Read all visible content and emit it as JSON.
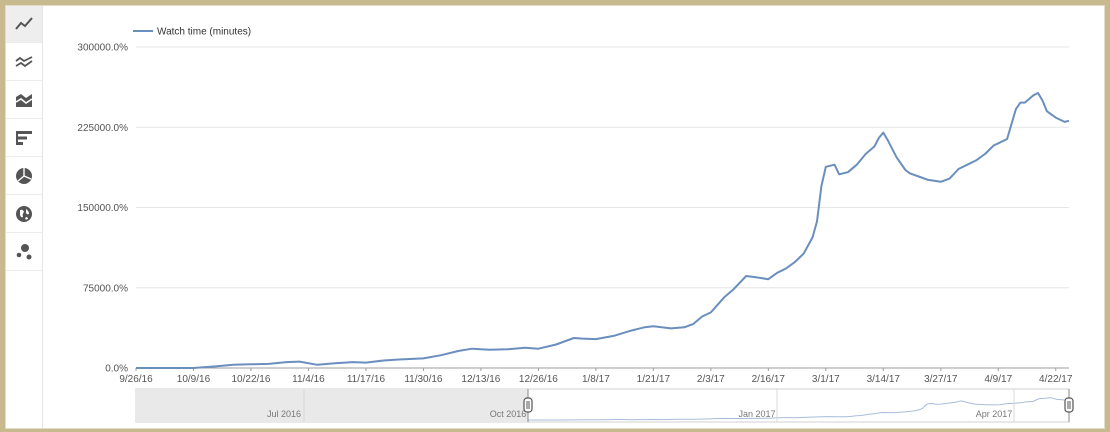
{
  "toolbar": {
    "icons": [
      "line-chart-icon",
      "multi-line-chart-icon",
      "stacked-area-chart-icon",
      "bar-chart-icon",
      "pie-chart-icon",
      "globe-map-icon",
      "bubble-chart-icon"
    ],
    "active": 0
  },
  "colors": {
    "line": "#6a8fbf",
    "grid": "#e6e6e6",
    "axis": "#9e9e9e",
    "nav_bg": "#e9e9e9",
    "frame": "#c9b98e"
  },
  "chart_data": {
    "type": "line",
    "legend": {
      "label": "Watch time (minutes)",
      "position": "top-left"
    },
    "title": "",
    "xlabel": "",
    "ylabel": "",
    "grid": true,
    "y_ticks": [
      "0.0%",
      "75000.0%",
      "150000.0%",
      "225000.0%",
      "300000.0%"
    ],
    "ylim": [
      0,
      300000
    ],
    "x_ticks": [
      "9/26/16",
      "10/9/16",
      "10/22/16",
      "11/4/16",
      "11/17/16",
      "11/30/16",
      "12/13/16",
      "12/26/16",
      "1/8/17",
      "1/21/17",
      "2/3/17",
      "2/16/17",
      "3/1/17",
      "3/14/17",
      "3/27/17",
      "4/9/17",
      "4/22/17"
    ],
    "xlim": [
      "9/26/16",
      "4/25/17"
    ],
    "series": [
      {
        "name": "Watch time (minutes)",
        "x": [
          "9/26/16",
          "10/9/16",
          "10/14/16",
          "10/18/16",
          "10/22/16",
          "10/26/16",
          "10/30/16",
          "11/2/16",
          "11/6/16",
          "11/10/16",
          "11/14/16",
          "11/17/16",
          "11/21/16",
          "11/25/16",
          "11/30/16",
          "12/4/16",
          "12/8/16",
          "12/11/16",
          "12/15/16",
          "12/19/16",
          "12/23/16",
          "12/26/16",
          "12/30/16",
          "1/3/17",
          "1/5/17",
          "1/8/17",
          "1/12/17",
          "1/16/17",
          "1/19/17",
          "1/21/17",
          "1/25/17",
          "1/28/17",
          "1/30/17",
          "2/1/17",
          "2/3/17",
          "2/6/17",
          "2/8/17",
          "2/11/17",
          "2/13/17",
          "2/16/17",
          "2/18/17",
          "2/20/17",
          "2/22/17",
          "2/24/17",
          "2/26/17",
          "2/27/17",
          "2/28/17",
          "3/1/17",
          "3/3/17",
          "3/4/17",
          "3/6/17",
          "3/8/17",
          "3/10/17",
          "3/12/17",
          "3/13/17",
          "3/14/17",
          "3/15/17",
          "3/17/17",
          "3/19/17",
          "3/20/17",
          "3/22/17",
          "3/24/17",
          "3/27/17",
          "3/29/17",
          "3/31/17",
          "4/2/17",
          "4/4/17",
          "4/6/17",
          "4/8/17",
          "4/9/17",
          "4/11/17",
          "4/13/17",
          "4/14/17",
          "4/15/17",
          "4/17/17",
          "4/18/17",
          "4/19/17",
          "4/20/17",
          "4/21/17",
          "4/22/17",
          "4/24/17",
          "4/25/17"
        ],
        "y": [
          0,
          0,
          1500,
          3000,
          3500,
          3800,
          5500,
          6000,
          3000,
          4500,
          5500,
          5000,
          7000,
          8000,
          9000,
          12000,
          16000,
          18000,
          17000,
          17500,
          19000,
          18000,
          22000,
          28000,
          27500,
          27000,
          30000,
          35000,
          38000,
          39000,
          37000,
          38000,
          41000,
          48000,
          52000,
          66000,
          73000,
          86000,
          85000,
          83000,
          89000,
          93000,
          99000,
          107000,
          122000,
          137000,
          170000,
          188000,
          190000,
          181000,
          183000,
          190000,
          200000,
          207000,
          215000,
          220000,
          213000,
          197000,
          185000,
          182000,
          179000,
          176000,
          174000,
          177000,
          186000,
          190000,
          194000,
          200000,
          208000,
          210000,
          214000,
          242000,
          248000,
          248000,
          255000,
          257000,
          250000,
          240000,
          237000,
          234000,
          230000,
          231000
        ]
      }
    ]
  },
  "navigator": {
    "labels": [
      "Jul 2016",
      "Oct 2016",
      "Jan 2017",
      "Apr 2017"
    ]
  }
}
